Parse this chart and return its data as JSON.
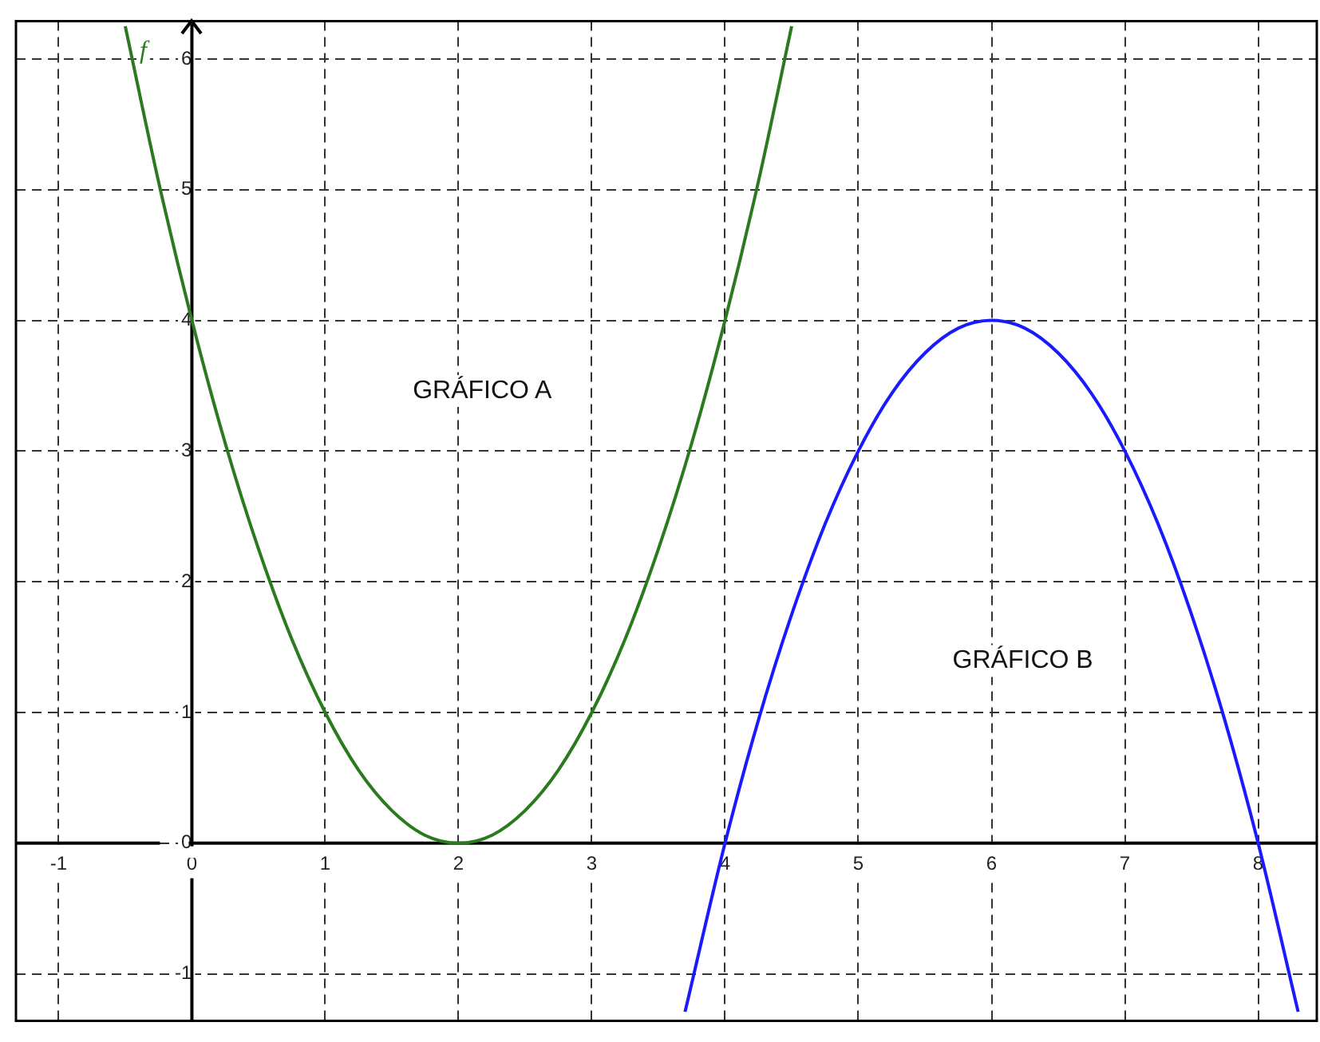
{
  "chart_data": {
    "type": "line",
    "xlim": [
      -1.32,
      8.44
    ],
    "ylim": [
      -1.36,
      6.29
    ],
    "xticks": [
      -1,
      0,
      1,
      2,
      3,
      4,
      5,
      6,
      7,
      8
    ],
    "yticks": [
      -1,
      0,
      1,
      2,
      3,
      4,
      5,
      6
    ],
    "grid": true,
    "legend": "top left",
    "marker": "none",
    "line_style": "solid",
    "annotations": [
      "GRÁFICO A",
      "GRÁFICO B"
    ],
    "series": [
      {
        "name": "f",
        "color": "#2a7a1e",
        "x": [
          -0.5,
          -0.25,
          0,
          0.25,
          0.5,
          0.75,
          1,
          1.25,
          1.5,
          1.75,
          2,
          2.25,
          2.5,
          2.75,
          3,
          3.25,
          3.5,
          3.75,
          4,
          4.25,
          4.5
        ],
        "values": [
          6.25,
          5.06,
          4,
          3.06,
          2.25,
          1.56,
          1,
          0.56,
          0.25,
          0.06,
          0,
          0.06,
          0.25,
          0.56,
          1,
          1.56,
          2.25,
          3.06,
          4,
          5.06,
          6.25
        ]
      },
      {
        "color": "#1a1aff",
        "x": [
          3.7,
          4,
          4.25,
          4.5,
          4.75,
          5,
          5.25,
          5.5,
          5.75,
          6,
          6.25,
          6.5,
          6.75,
          7,
          7.25,
          7.5,
          7.75,
          8,
          8.3
        ],
        "values": [
          -1.29,
          0,
          0.94,
          1.75,
          2.44,
          3,
          3.44,
          3.75,
          3.94,
          4,
          3.94,
          3.75,
          3.44,
          3,
          2.44,
          1.75,
          0.94,
          0,
          -1.29
        ]
      }
    ]
  }
}
